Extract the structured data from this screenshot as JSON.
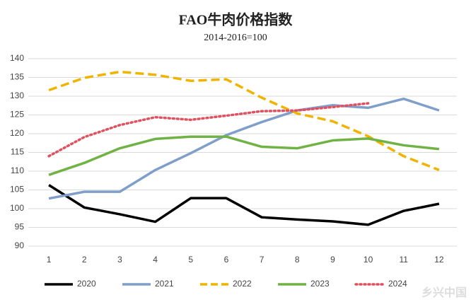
{
  "chart_data": {
    "type": "line",
    "title": "FAO牛肉价格指数",
    "subtitle": "2014-2016=100",
    "watermark": "乡兴中国",
    "categories": [
      "1",
      "2",
      "3",
      "4",
      "5",
      "6",
      "7",
      "8",
      "9",
      "10",
      "11",
      "12"
    ],
    "series": [
      {
        "name": "2020",
        "color": "#000000",
        "style": "solid",
        "values": [
          106.3,
          100.3,
          98.5,
          96.5,
          102.8,
          102.8,
          97.7,
          97.1,
          96.6,
          95.7,
          99.4,
          101.3
        ]
      },
      {
        "name": "2021",
        "color": "#7f9fca",
        "style": "solid",
        "values": [
          102.7,
          104.5,
          104.5,
          110.3,
          114.8,
          119.6,
          123.1,
          126.2,
          127.6,
          126.9,
          129.3,
          126.2
        ]
      },
      {
        "name": "2022",
        "color": "#f0b400",
        "style": "dashed",
        "values": [
          131.6,
          134.9,
          136.5,
          135.7,
          134.1,
          134.5,
          129.6,
          125.4,
          123.3,
          119.3,
          114.0,
          110.3
        ]
      },
      {
        "name": "2023",
        "color": "#70b244",
        "style": "solid",
        "values": [
          109.0,
          112.2,
          116.1,
          118.6,
          119.2,
          119.2,
          116.5,
          116.1,
          118.2,
          118.7,
          116.9,
          115.9
        ]
      },
      {
        "name": "2024",
        "color": "#e0505e",
        "style": "dotted",
        "values": [
          114.0,
          119.1,
          122.3,
          124.4,
          123.7,
          124.8,
          126.0,
          126.2,
          127.1,
          128.1,
          null,
          null
        ]
      }
    ],
    "ylim": [
      90,
      140
    ],
    "yticks": [
      90,
      95,
      100,
      105,
      110,
      115,
      120,
      125,
      130,
      135,
      140
    ],
    "grid": true,
    "legend": "bottom"
  }
}
